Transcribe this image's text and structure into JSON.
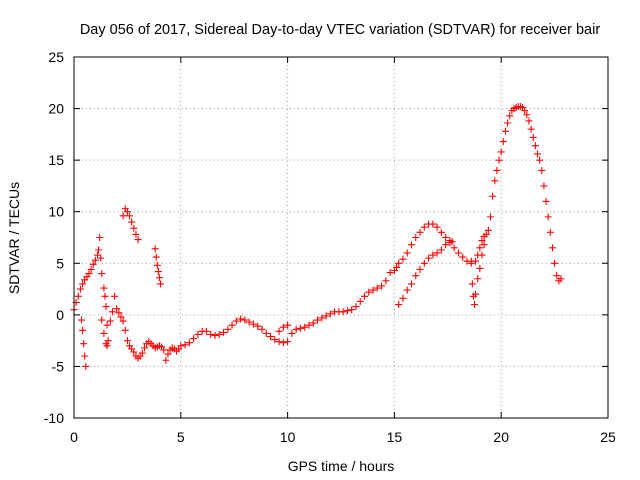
{
  "chart_data": {
    "type": "scatter",
    "title": "Day 056 of 2017, Sidereal Day-to-day VTEC variation (SDTVAR) for receiver bair",
    "xlabel": "GPS time / hours",
    "ylabel": "SDTVAR / TECUs",
    "xlim": [
      0,
      25
    ],
    "ylim": [
      -10,
      25
    ],
    "xticks": [
      "0",
      "5",
      "10",
      "15",
      "20",
      "25"
    ],
    "yticks": [
      "-10",
      "-5",
      "0",
      "5",
      "10",
      "15",
      "20",
      "25"
    ],
    "grid": true,
    "marker": "plus",
    "color": "#ff0000",
    "series": [
      {
        "points": [
          [
            0.0,
            0.5
          ],
          [
            0.1,
            1.2
          ],
          [
            0.2,
            1.8
          ],
          [
            0.3,
            2.5
          ],
          [
            0.4,
            3.0
          ],
          [
            0.5,
            3.4
          ],
          [
            0.6,
            3.7
          ],
          [
            0.7,
            4.0
          ],
          [
            0.8,
            4.4
          ],
          [
            0.9,
            4.9
          ],
          [
            1.0,
            5.3
          ],
          [
            1.1,
            5.8
          ],
          [
            1.15,
            6.3
          ],
          [
            1.2,
            7.5
          ],
          [
            1.25,
            5.5
          ],
          [
            1.3,
            4.0
          ],
          [
            1.4,
            2.6
          ],
          [
            1.45,
            1.8
          ],
          [
            1.5,
            0.8
          ],
          [
            1.55,
            -1.0
          ],
          [
            1.6,
            -2.5
          ],
          [
            1.7,
            -0.6
          ],
          [
            1.8,
            0.3
          ],
          [
            1.9,
            1.8
          ],
          [
            2.0,
            0.6
          ],
          [
            2.1,
            0.2
          ],
          [
            2.2,
            -0.2
          ],
          [
            2.3,
            -0.6
          ],
          [
            2.4,
            -1.5
          ],
          [
            2.5,
            -2.5
          ],
          [
            2.6,
            -3.0
          ],
          [
            2.7,
            -3.3
          ],
          [
            2.8,
            -3.6
          ],
          [
            2.9,
            -4.0
          ],
          [
            3.0,
            -4.2
          ],
          [
            3.1,
            -4.0
          ],
          [
            3.2,
            -3.7
          ],
          [
            3.3,
            -3.2
          ],
          [
            3.4,
            -2.8
          ],
          [
            3.5,
            -2.6
          ],
          [
            3.6,
            -2.8
          ],
          [
            3.7,
            -3.0
          ],
          [
            3.8,
            -3.2
          ],
          [
            3.9,
            -3.1
          ],
          [
            4.0,
            -3.0
          ],
          [
            4.1,
            -3.1
          ],
          [
            4.2,
            -3.4
          ],
          [
            4.3,
            -4.4
          ],
          [
            4.4,
            -3.8
          ],
          [
            4.5,
            -3.4
          ],
          [
            4.6,
            -3.2
          ],
          [
            4.7,
            -3.3
          ],
          [
            4.8,
            -3.5
          ],
          [
            4.9,
            -3.3
          ],
          [
            5.0,
            -3.0
          ],
          [
            5.2,
            -2.9
          ],
          [
            5.4,
            -2.7
          ],
          [
            5.6,
            -2.3
          ],
          [
            5.8,
            -1.9
          ],
          [
            6.0,
            -1.6
          ],
          [
            6.2,
            -1.6
          ],
          [
            6.4,
            -1.9
          ],
          [
            6.6,
            -2.0
          ],
          [
            6.8,
            -1.9
          ],
          [
            7.0,
            -1.7
          ],
          [
            7.2,
            -1.4
          ],
          [
            7.4,
            -1.0
          ],
          [
            7.6,
            -0.6
          ],
          [
            7.8,
            -0.4
          ],
          [
            8.0,
            -0.5
          ],
          [
            8.2,
            -0.7
          ],
          [
            8.4,
            -0.9
          ],
          [
            8.6,
            -1.1
          ],
          [
            8.8,
            -1.4
          ],
          [
            9.0,
            -1.8
          ],
          [
            9.2,
            -2.1
          ],
          [
            9.4,
            -2.4
          ],
          [
            9.6,
            -2.6
          ],
          [
            9.8,
            -2.7
          ],
          [
            10.0,
            -2.6
          ],
          [
            10.2,
            -1.8
          ],
          [
            10.4,
            -1.4
          ],
          [
            10.6,
            -1.3
          ],
          [
            10.8,
            -1.2
          ],
          [
            11.0,
            -1.0
          ],
          [
            11.2,
            -0.8
          ],
          [
            11.4,
            -0.5
          ],
          [
            11.6,
            -0.3
          ],
          [
            11.8,
            -0.1
          ],
          [
            12.0,
            0.1
          ],
          [
            12.2,
            0.3
          ],
          [
            12.4,
            0.3
          ],
          [
            12.6,
            0.3
          ],
          [
            12.8,
            0.4
          ],
          [
            13.0,
            0.5
          ],
          [
            13.2,
            0.8
          ],
          [
            13.4,
            1.3
          ],
          [
            13.6,
            1.8
          ],
          [
            13.8,
            2.2
          ],
          [
            14.0,
            2.4
          ],
          [
            14.2,
            2.6
          ],
          [
            14.4,
            2.8
          ],
          [
            14.6,
            3.3
          ],
          [
            14.8,
            4.1
          ],
          [
            15.0,
            4.3
          ],
          [
            15.1,
            4.6
          ],
          [
            15.2,
            5.0
          ],
          [
            15.4,
            5.4
          ],
          [
            15.6,
            6.0
          ],
          [
            15.8,
            6.8
          ],
          [
            16.0,
            7.5
          ],
          [
            16.2,
            8.0
          ],
          [
            16.4,
            8.5
          ],
          [
            16.6,
            8.8
          ],
          [
            16.8,
            8.8
          ],
          [
            17.0,
            8.5
          ],
          [
            17.2,
            8.0
          ],
          [
            17.4,
            7.5
          ],
          [
            17.6,
            7.0
          ],
          [
            17.8,
            6.5
          ],
          [
            18.0,
            6.0
          ],
          [
            18.2,
            5.6
          ],
          [
            18.4,
            5.2
          ],
          [
            18.6,
            5.0
          ],
          [
            18.8,
            5.2
          ],
          [
            18.9,
            5.8
          ],
          [
            19.0,
            6.5
          ],
          [
            19.1,
            7.2
          ],
          [
            19.2,
            7.6
          ],
          [
            19.3,
            7.8
          ],
          [
            19.4,
            8.2
          ],
          [
            19.5,
            9.5
          ],
          [
            19.6,
            11.5
          ],
          [
            19.7,
            13.0
          ],
          [
            19.8,
            14.0
          ],
          [
            19.9,
            15.0
          ],
          [
            20.0,
            15.8
          ],
          [
            20.1,
            16.8
          ],
          [
            20.2,
            17.8
          ],
          [
            20.3,
            18.6
          ],
          [
            20.4,
            19.3
          ],
          [
            20.5,
            19.8
          ],
          [
            20.6,
            20.0
          ],
          [
            20.7,
            20.1
          ],
          [
            20.8,
            20.2
          ],
          [
            20.9,
            20.2
          ],
          [
            21.0,
            20.1
          ],
          [
            21.1,
            19.8
          ],
          [
            21.2,
            19.4
          ],
          [
            21.3,
            18.8
          ],
          [
            21.4,
            18.0
          ],
          [
            21.5,
            17.2
          ],
          [
            21.6,
            16.4
          ],
          [
            21.7,
            15.6
          ],
          [
            21.8,
            15.0
          ],
          [
            21.9,
            14.0
          ],
          [
            22.0,
            12.5
          ],
          [
            22.1,
            11.0
          ],
          [
            22.2,
            9.5
          ],
          [
            22.3,
            8.0
          ],
          [
            22.4,
            6.5
          ],
          [
            22.5,
            5.0
          ],
          [
            22.6,
            3.8
          ],
          [
            22.7,
            3.3
          ],
          [
            22.8,
            3.5
          ],
          [
            0.35,
            -0.5
          ],
          [
            0.4,
            -1.5
          ],
          [
            0.45,
            -2.8
          ],
          [
            0.5,
            -4.0
          ],
          [
            0.55,
            -5.0
          ],
          [
            1.3,
            -0.5
          ],
          [
            1.4,
            -1.8
          ],
          [
            1.5,
            -2.8
          ],
          [
            1.55,
            -3.0
          ],
          [
            2.3,
            9.6
          ],
          [
            2.4,
            10.3
          ],
          [
            2.5,
            10.0
          ],
          [
            2.6,
            9.6
          ],
          [
            2.7,
            9.0
          ],
          [
            2.8,
            8.4
          ],
          [
            2.9,
            7.8
          ],
          [
            3.0,
            7.3
          ],
          [
            3.8,
            6.4
          ],
          [
            3.85,
            5.6
          ],
          [
            3.9,
            4.8
          ],
          [
            3.95,
            4.2
          ],
          [
            4.0,
            3.6
          ],
          [
            4.05,
            3.0
          ],
          [
            9.6,
            -1.6
          ],
          [
            9.8,
            -1.2
          ],
          [
            10.0,
            -1.0
          ],
          [
            15.2,
            1.0
          ],
          [
            15.4,
            1.6
          ],
          [
            15.6,
            2.4
          ],
          [
            15.8,
            3.0
          ],
          [
            16.0,
            3.8
          ],
          [
            16.2,
            4.4
          ],
          [
            16.4,
            5.0
          ],
          [
            16.6,
            5.5
          ],
          [
            16.8,
            5.8
          ],
          [
            17.0,
            6.0
          ],
          [
            17.2,
            6.3
          ],
          [
            17.4,
            6.8
          ],
          [
            17.6,
            7.2
          ],
          [
            17.7,
            7.1
          ],
          [
            18.6,
            5.2
          ],
          [
            18.65,
            3.0
          ],
          [
            18.7,
            1.8
          ],
          [
            18.75,
            1.0
          ],
          [
            18.8,
            2.0
          ],
          [
            18.9,
            3.5
          ],
          [
            19.0,
            4.5
          ],
          [
            19.1,
            5.8
          ],
          [
            19.2,
            6.8
          ]
        ]
      }
    ]
  }
}
